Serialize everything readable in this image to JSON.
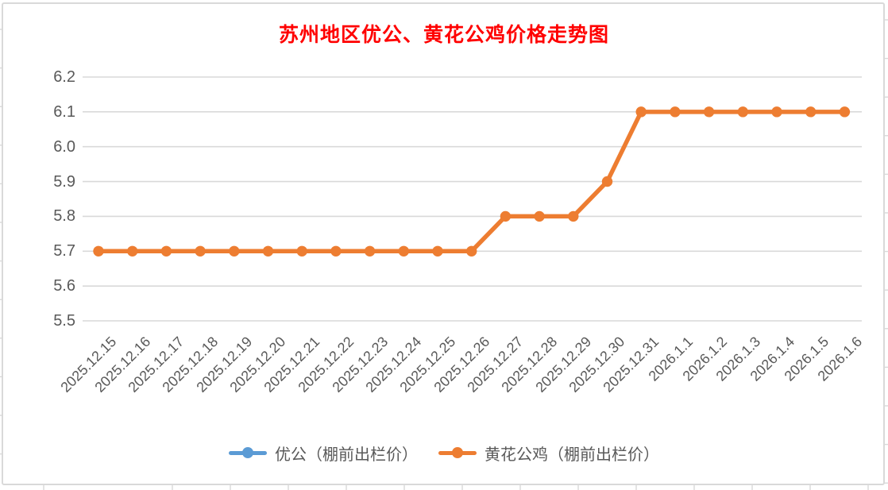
{
  "chart_data": {
    "type": "line",
    "title": "苏州地区优公、黄花公鸡价格走势图",
    "title_color": "#ff0000",
    "categories": [
      "2025.12.15",
      "2025.12.16",
      "2025.12.17",
      "2025.12.18",
      "2025.12.19",
      "2025.12.20",
      "2025.12.21",
      "2025.12.22",
      "2025.12.23",
      "2025.12.24",
      "2025.12.25",
      "2025.12.26",
      "2025.12.27",
      "2025.12.28",
      "2025.12.29",
      "2025.12.30",
      "2025.12.31",
      "2026.1.1",
      "2026.1.2",
      "2026.1.3",
      "2026.1.4",
      "2026.1.5",
      "2026.1.6"
    ],
    "series": [
      {
        "name": "优公（棚前出栏价）",
        "color": "#5b9bd5",
        "values": []
      },
      {
        "name": "黄花公鸡（棚前出栏价）",
        "color": "#ed7d31",
        "values": [
          5.7,
          5.7,
          5.7,
          5.7,
          5.7,
          5.7,
          5.7,
          5.7,
          5.7,
          5.7,
          5.7,
          5.7,
          5.8,
          5.8,
          5.8,
          5.9,
          6.1,
          6.1,
          6.1,
          6.1,
          6.1,
          6.1,
          6.1
        ]
      }
    ],
    "ylim": [
      5.5,
      6.2
    ],
    "y_ticks": [
      "6.2",
      "6.1",
      "6.0",
      "5.9",
      "5.8",
      "5.7",
      "5.6",
      "5.5"
    ],
    "xlabel": "",
    "ylabel": "",
    "grid": "horizontal",
    "grid_color": "#d9d9d9",
    "axis_text_color": "#595959",
    "legend_position": "bottom"
  }
}
